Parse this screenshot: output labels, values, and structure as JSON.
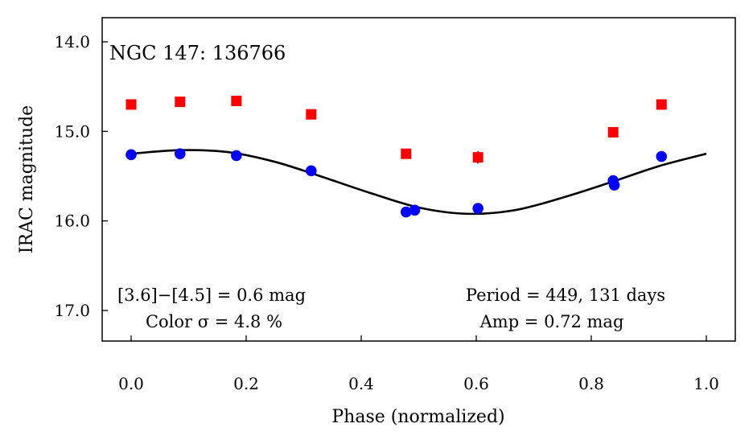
{
  "chart_data": {
    "type": "scatter",
    "title": "NGC 147:  136766",
    "xlabel": "Phase (normalized)",
    "ylabel": "IRAC magnitude",
    "xlim": [
      -0.05,
      1.05
    ],
    "ylim": [
      14.0,
      17.0
    ],
    "y_inverted": true,
    "x_ticks": [
      0.0,
      0.2,
      0.4,
      0.6,
      0.8,
      1.0
    ],
    "x_tick_labels": [
      "0.0",
      "0.2",
      "0.4",
      "0.6",
      "0.8",
      "1.0"
    ],
    "y_ticks": [
      14.0,
      15.0,
      16.0,
      17.0
    ],
    "y_tick_labels": [
      "14.0",
      "15.0",
      "16.0",
      "17.0"
    ],
    "grid": false,
    "series": [
      {
        "marker": "square",
        "color": "#ff0000",
        "x": [
          0.0,
          0.085,
          0.183,
          0.313,
          0.478,
          0.603,
          0.838,
          0.922
        ],
        "y": [
          14.7,
          14.67,
          14.66,
          14.81,
          15.25,
          15.29,
          15.01,
          14.7
        ],
        "err": [
          0.03,
          0.04,
          0.04,
          0.05,
          0.05,
          0.07,
          0.05,
          0.03
        ]
      },
      {
        "marker": "circle",
        "color": "#0000ff",
        "x": [
          0.0,
          0.085,
          0.183,
          0.313,
          0.478,
          0.493,
          0.603,
          0.838,
          0.84,
          0.922
        ],
        "y": [
          15.26,
          15.25,
          15.27,
          15.44,
          15.9,
          15.88,
          15.86,
          15.55,
          15.6,
          15.28
        ],
        "err": [
          0.03,
          0.03,
          0.05,
          0.03,
          0.03,
          0.03,
          0.04,
          0.03,
          0.03,
          0.04
        ]
      },
      {
        "type": "line",
        "color": "#000000",
        "x": [
          0.0,
          0.0833,
          0.1667,
          0.25,
          0.3333,
          0.4167,
          0.5,
          0.5833,
          0.6667,
          0.75,
          0.8333,
          0.9167,
          1.0
        ],
        "y": [
          15.25,
          15.21,
          15.23,
          15.34,
          15.51,
          15.69,
          15.85,
          15.92,
          15.88,
          15.74,
          15.57,
          15.39,
          15.25
        ]
      }
    ],
    "annotations": {
      "color_line1": "[3.6]−[4.5] = 0.6 mag",
      "color_line2": "Color σ = 4.8 %",
      "period_line": "Period = 449, 131 days",
      "amp_line": "Amp = 0.72 mag"
    }
  }
}
